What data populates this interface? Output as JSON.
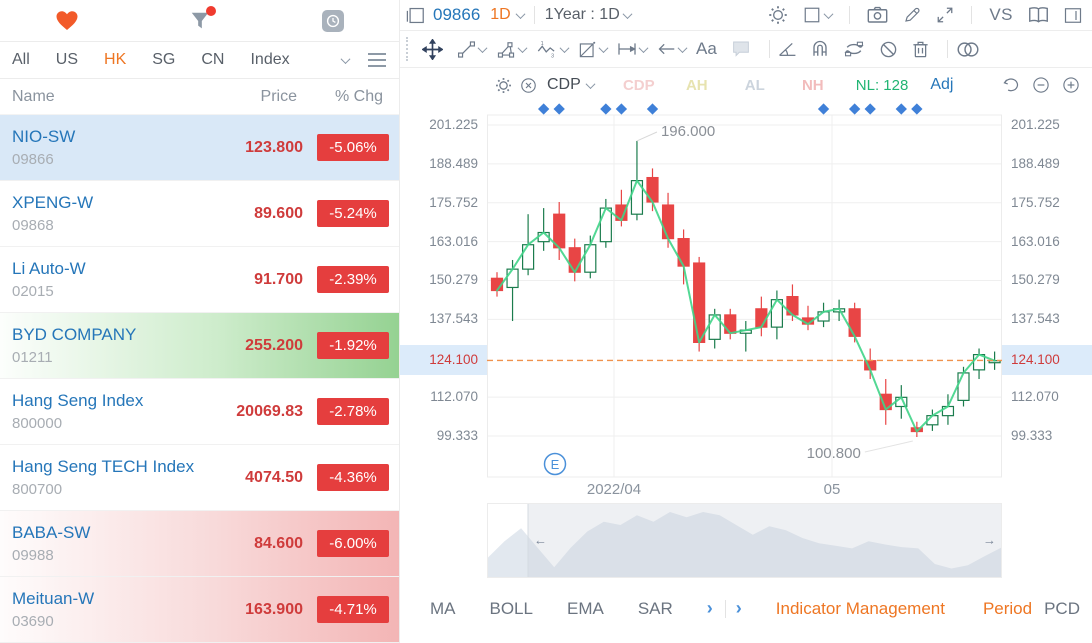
{
  "watchlist": {
    "toolbar": {
      "heart_icon": "favorites",
      "filter_icon": "screener",
      "clock_icon": "history"
    },
    "tabs": [
      "All",
      "US",
      "HK",
      "SG",
      "CN",
      "Index"
    ],
    "active_tab": "HK",
    "columns": {
      "name": "Name",
      "price": "Price",
      "chg": "% Chg"
    },
    "rows": [
      {
        "name": "NIO-SW",
        "code": "09866",
        "price": "123.800",
        "change": "-5.06%",
        "state": "selected"
      },
      {
        "name": "XPENG-W",
        "code": "09868",
        "price": "89.600",
        "change": "-5.24%",
        "state": "none"
      },
      {
        "name": "Li Auto-W",
        "code": "02015",
        "price": "91.700",
        "change": "-2.39%",
        "state": "none"
      },
      {
        "name": "BYD COMPANY",
        "code": "01211",
        "price": "255.200",
        "change": "-1.92%",
        "state": "flash-up"
      },
      {
        "name": "Hang Seng Index",
        "code": "800000",
        "price": "20069.83",
        "change": "-2.78%",
        "state": "none"
      },
      {
        "name": "Hang Seng TECH Index",
        "code": "800700",
        "price": "4074.50",
        "change": "-4.36%",
        "state": "none"
      },
      {
        "name": "BABA-SW",
        "code": "09988",
        "price": "84.600",
        "change": "-6.00%",
        "state": "flash-down"
      },
      {
        "name": "Meituan-W",
        "code": "03690",
        "price": "163.900",
        "change": "-4.71%",
        "state": "flash-down"
      }
    ]
  },
  "chart_panel": {
    "symbol": "09866",
    "interval": "1D",
    "range": "1Year : 1D",
    "vs_label": "VS",
    "text_tool_label": "Aa",
    "indicator_bar": {
      "name": "CDP",
      "faded_labels": [
        {
          "label": "CDP",
          "color": "#f4cfcf"
        },
        {
          "label": "AH",
          "color": "#e7e3b0"
        },
        {
          "label": "AL",
          "color": "#ccd4dd"
        },
        {
          "label": "NH",
          "color": "#f2bcbc"
        }
      ],
      "nl_label": "NL:",
      "nl_value": "128",
      "nl_color": "#21b573",
      "adj_label": "Adj"
    },
    "y_axis": [
      "201.225",
      "188.489",
      "175.752",
      "163.016",
      "150.279",
      "137.543",
      "124.100",
      "112.070",
      "99.333"
    ],
    "current_price": "124.100",
    "x_axis": [
      "2022/04",
      "05"
    ],
    "annotations": {
      "high": "196.000",
      "low": "100.800",
      "event": "E"
    },
    "chart_data": {
      "type": "candlestick",
      "ylim": [
        85.9,
        204.5
      ],
      "candles": [
        [
          151,
          153,
          145,
          147
        ],
        [
          148,
          157,
          137,
          154
        ],
        [
          154,
          172,
          152,
          162
        ],
        [
          163,
          174,
          160,
          166
        ],
        [
          172,
          176,
          157,
          161
        ],
        [
          161,
          164,
          150,
          153
        ],
        [
          153,
          165,
          151,
          162
        ],
        [
          163,
          177,
          161,
          174
        ],
        [
          175,
          180,
          168,
          170
        ],
        [
          172,
          196,
          170,
          183
        ],
        [
          184,
          187,
          173,
          176
        ],
        [
          175,
          179,
          161,
          164
        ],
        [
          164,
          167,
          149,
          155
        ],
        [
          156,
          158,
          127,
          130
        ],
        [
          131,
          141,
          128,
          139
        ],
        [
          139,
          141,
          131,
          133
        ],
        [
          133,
          137,
          127,
          134
        ],
        [
          141,
          145,
          132,
          135
        ],
        [
          135,
          147,
          131,
          144
        ],
        [
          145,
          149,
          137,
          139
        ],
        [
          138,
          142,
          134,
          136
        ],
        [
          137,
          143,
          135,
          140
        ],
        [
          140,
          144,
          137,
          141
        ],
        [
          141,
          143,
          130,
          132
        ],
        [
          124,
          128,
          118,
          121
        ],
        [
          113,
          118,
          103,
          108
        ],
        [
          109,
          116,
          105,
          112
        ],
        [
          102,
          104,
          99,
          100.8
        ],
        [
          103,
          108,
          101,
          106
        ],
        [
          106,
          113,
          103,
          109
        ],
        [
          111,
          122,
          109,
          120
        ],
        [
          121,
          128,
          118,
          126
        ],
        [
          124,
          127,
          121,
          124
        ]
      ],
      "diamond_indices": [
        3,
        4,
        7,
        8,
        10,
        21,
        23,
        24,
        26,
        27
      ],
      "high_candle": 9,
      "low_candle": 27
    },
    "navigator": {
      "points": [
        0.3,
        0.55,
        0.75,
        0.45,
        0.15,
        0.45,
        0.7,
        0.85,
        0.8,
        0.95,
        0.85,
        1.0,
        0.92,
        1.0,
        0.95,
        0.8,
        0.65,
        0.78,
        0.72,
        0.6,
        0.52,
        0.48,
        0.44,
        0.55,
        0.5,
        0.46,
        0.44,
        0.2,
        0.13,
        0.18,
        0.32,
        0.45
      ],
      "selection_start_ratio": 0.078,
      "left_arrow": "←",
      "right_arrow": "→"
    },
    "bottom_bar": {
      "indicators": [
        "MA",
        "BOLL",
        "EMA",
        "SAR"
      ],
      "more_chevron": "›",
      "management": "Indicator Management",
      "period_label": "Period",
      "period_value": "PCD"
    }
  },
  "colors": {
    "accent_orange": "#ee7623",
    "link_blue": "#2576b9",
    "price_red": "#cf3b3b",
    "badge_red": "#e53e3e",
    "selected_row": "#d9e8f7",
    "candle_down": "#e84545",
    "candle_up_stroke": "#1b7c4d",
    "ma_line": "#40d488",
    "dashed_line": "#f0924d",
    "diamond_blue": "#3f80d8",
    "axis_gray": "#7f8893",
    "icon_gray": "#6e7a8a",
    "nav_fill": "#e2e8ef"
  }
}
